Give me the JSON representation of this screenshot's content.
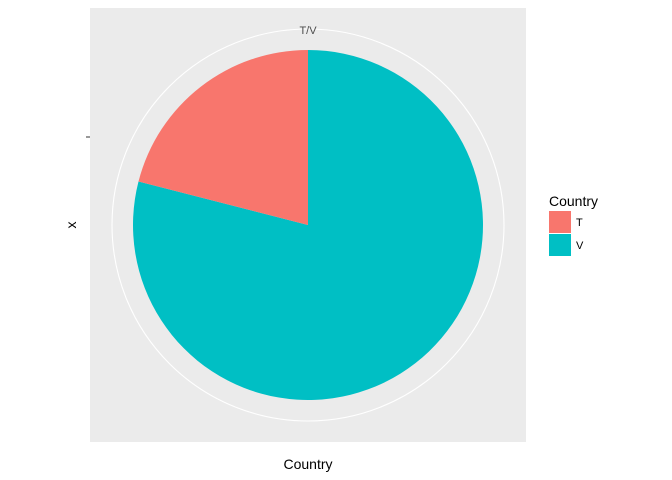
{
  "chart_data": {
    "type": "pie",
    "theta_tick_label": "T/V",
    "ylabel": "x",
    "xlabel": "Country",
    "legend_title": "Country",
    "legend_position": "right",
    "slices": [
      {
        "label": "T",
        "value": 21,
        "color": "#F8766D"
      },
      {
        "label": "V",
        "value": 79,
        "color": "#00BFC4"
      }
    ],
    "panel_background": "#EBEBEB",
    "grid_color": "#FFFFFF"
  }
}
